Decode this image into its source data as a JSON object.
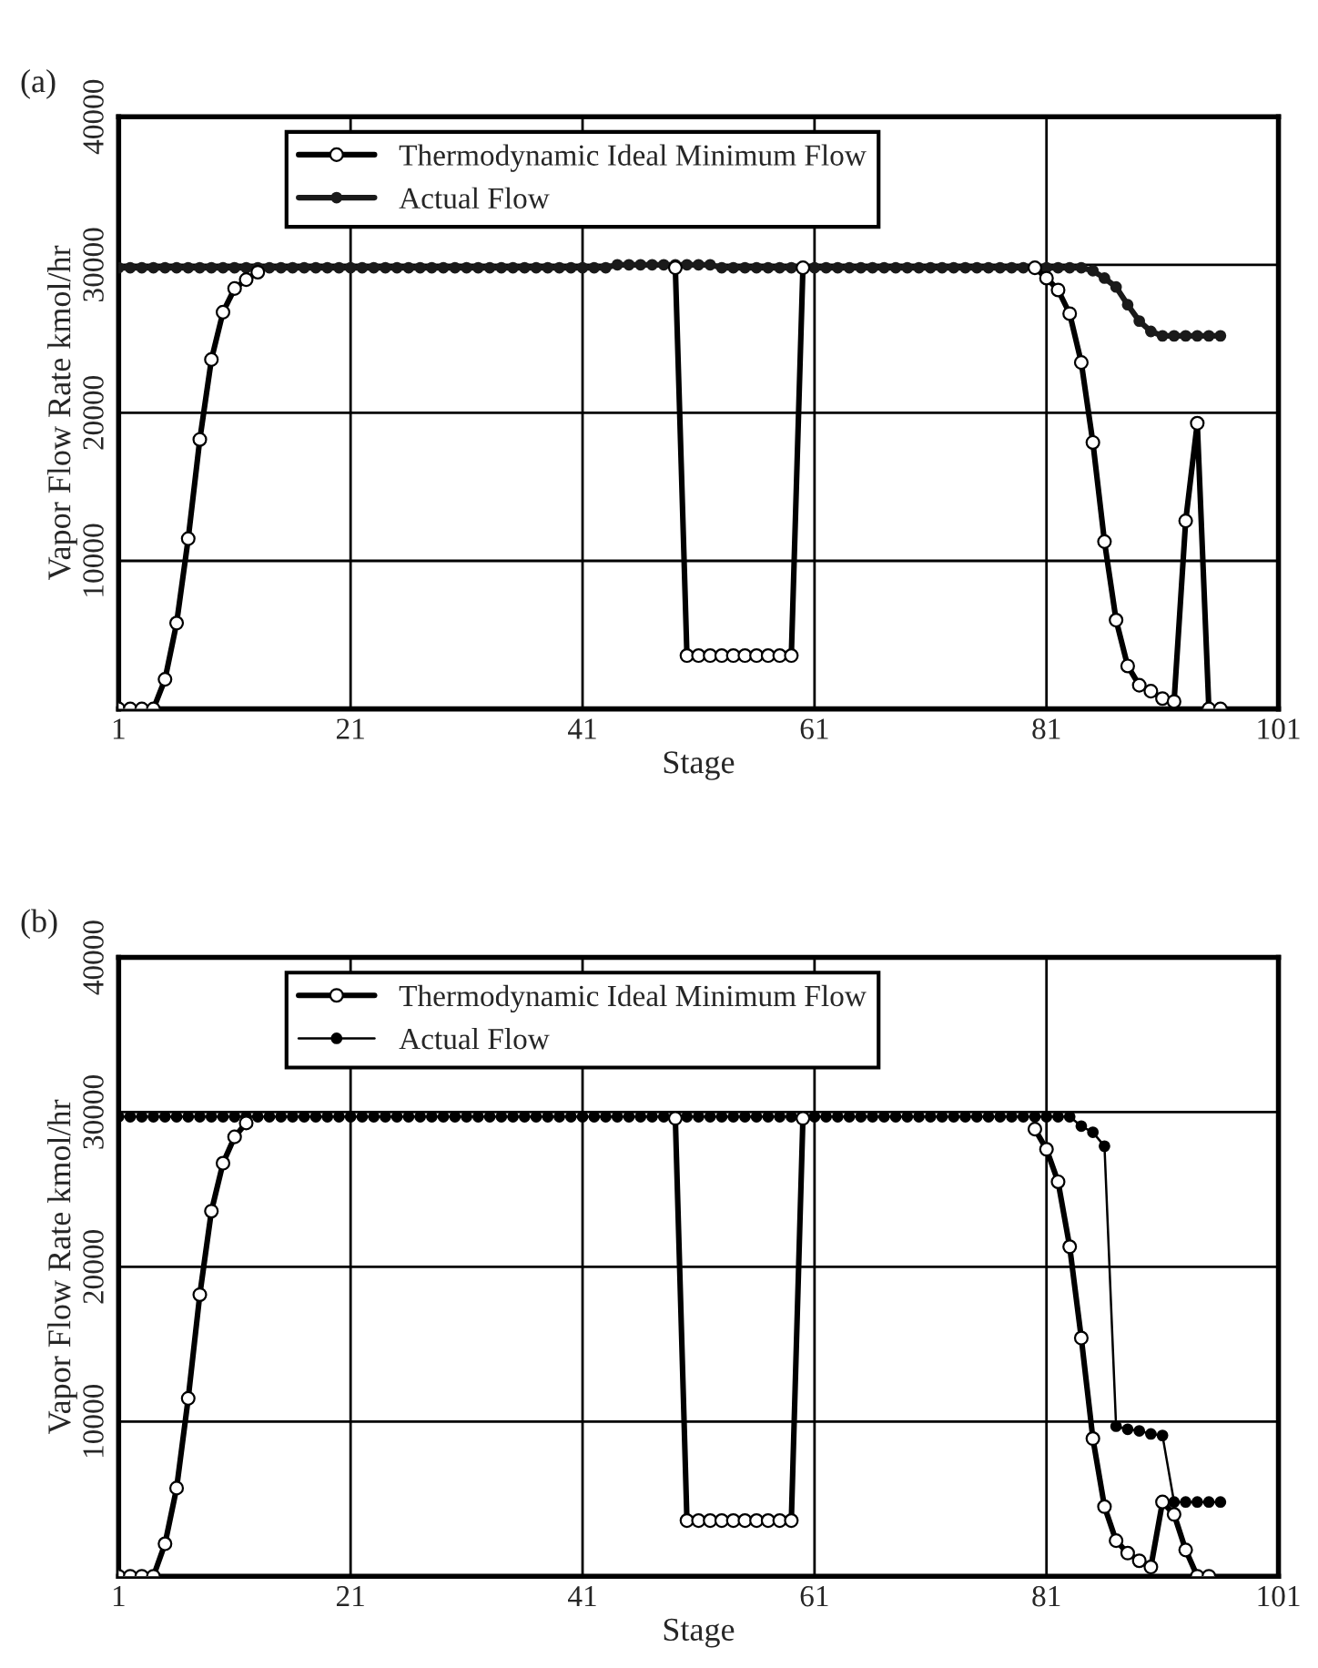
{
  "chart_data": [
    {
      "type": "line",
      "annotations": [
        "(a)"
      ],
      "xlabel": "Stage",
      "ylabel": "Vapor Flow Rate kmol/hr",
      "x": [
        1,
        2,
        3,
        4,
        5,
        6,
        7,
        8,
        9,
        10,
        11,
        12,
        13,
        14,
        15,
        16,
        17,
        18,
        19,
        20,
        21,
        22,
        23,
        24,
        25,
        26,
        27,
        28,
        29,
        30,
        31,
        32,
        33,
        34,
        35,
        36,
        37,
        38,
        39,
        40,
        41,
        42,
        43,
        44,
        45,
        46,
        47,
        48,
        49,
        50,
        51,
        52,
        53,
        54,
        55,
        56,
        57,
        58,
        59,
        60,
        61,
        62,
        63,
        64,
        65,
        66,
        67,
        68,
        69,
        70,
        71,
        72,
        73,
        74,
        75,
        76,
        77,
        78,
        79,
        80,
        81,
        82,
        83,
        84,
        85,
        86,
        87,
        88,
        89,
        90,
        91,
        92,
        93,
        94,
        95,
        96
      ],
      "series": [
        {
          "name": "Thermodynamic Ideal Minimum Flow",
          "color": "#000000",
          "marker": "circle",
          "values": [
            0,
            0,
            0,
            0,
            2000,
            5800,
            11500,
            18200,
            23600,
            26800,
            28400,
            29000,
            29500,
            null,
            null,
            null,
            null,
            null,
            null,
            null,
            null,
            null,
            null,
            null,
            null,
            null,
            null,
            null,
            null,
            null,
            null,
            null,
            null,
            null,
            null,
            null,
            null,
            null,
            null,
            null,
            null,
            null,
            null,
            null,
            null,
            null,
            null,
            null,
            29800,
            3600,
            3600,
            3600,
            3600,
            3600,
            3600,
            3600,
            3600,
            3600,
            3600,
            29800,
            null,
            null,
            null,
            null,
            null,
            null,
            null,
            null,
            null,
            null,
            null,
            null,
            null,
            null,
            null,
            null,
            null,
            null,
            null,
            29800,
            29100,
            28300,
            26700,
            23400,
            18000,
            11300,
            6000,
            2900,
            1600,
            1200,
            700,
            500,
            12700,
            19300,
            0,
            0
          ]
        },
        {
          "name": "Actual Flow",
          "color": "#1a1a1a",
          "marker": "circle",
          "values": [
            29800,
            29800,
            29800,
            29800,
            29800,
            29800,
            29800,
            29800,
            29800,
            29800,
            29800,
            29800,
            29800,
            29800,
            29800,
            29800,
            29800,
            29800,
            29800,
            29800,
            29800,
            29800,
            29800,
            29800,
            29800,
            29800,
            29800,
            29800,
            29800,
            29800,
            29800,
            29800,
            29800,
            29800,
            29800,
            29800,
            29800,
            29800,
            29800,
            29800,
            29800,
            29800,
            29800,
            30000,
            30000,
            30000,
            30000,
            30000,
            30000,
            30000,
            30000,
            30000,
            29800,
            29800,
            29800,
            29800,
            29800,
            29800,
            29800,
            29800,
            29800,
            29800,
            29800,
            29800,
            29800,
            29800,
            29800,
            29800,
            29800,
            29800,
            29800,
            29800,
            29800,
            29800,
            29800,
            29800,
            29800,
            29800,
            29800,
            29800,
            29800,
            29800,
            29800,
            29800,
            29600,
            29100,
            28500,
            27300,
            26200,
            25500,
            25200,
            25200,
            25200,
            25200,
            25200,
            25200
          ]
        }
      ],
      "xlim": [
        1,
        101
      ],
      "xticks": [
        1,
        21,
        41,
        61,
        81,
        101
      ],
      "ylim": [
        0,
        40000
      ],
      "yticks": [
        {
          "value": 0,
          "label": null
        },
        10000,
        20000,
        30000,
        40000
      ],
      "grid": true,
      "legend": "top"
    },
    {
      "type": "line",
      "annotations": [
        "(b)"
      ],
      "xlabel": "Stage",
      "ylabel": "Vapor Flow Rate kmol/hr",
      "x": [
        1,
        2,
        3,
        4,
        5,
        6,
        7,
        8,
        9,
        10,
        11,
        12,
        13,
        14,
        15,
        16,
        17,
        18,
        19,
        20,
        21,
        22,
        23,
        24,
        25,
        26,
        27,
        28,
        29,
        30,
        31,
        32,
        33,
        34,
        35,
        36,
        37,
        38,
        39,
        40,
        41,
        42,
        43,
        44,
        45,
        46,
        47,
        48,
        49,
        50,
        51,
        52,
        53,
        54,
        55,
        56,
        57,
        58,
        59,
        60,
        61,
        62,
        63,
        64,
        65,
        66,
        67,
        68,
        69,
        70,
        71,
        72,
        73,
        74,
        75,
        76,
        77,
        78,
        79,
        80,
        81,
        82,
        83,
        84,
        85,
        86,
        87,
        88,
        89,
        90,
        91,
        92,
        93,
        94,
        95,
        96
      ],
      "series": [
        {
          "name": "Thermodynamic Ideal Minimum Flow",
          "color": "#000000",
          "marker": "circle",
          "values": [
            0,
            0,
            0,
            0,
            2100,
            5700,
            11500,
            18200,
            23600,
            26700,
            28400,
            29300,
            null,
            null,
            null,
            null,
            null,
            null,
            null,
            null,
            null,
            null,
            null,
            null,
            null,
            null,
            null,
            null,
            null,
            null,
            null,
            null,
            null,
            null,
            null,
            null,
            null,
            null,
            null,
            null,
            null,
            null,
            null,
            null,
            null,
            null,
            null,
            null,
            29600,
            3600,
            3600,
            3600,
            3600,
            3600,
            3600,
            3600,
            3600,
            3600,
            3600,
            29600,
            null,
            null,
            null,
            null,
            null,
            null,
            null,
            null,
            null,
            null,
            null,
            null,
            null,
            null,
            null,
            null,
            null,
            null,
            null,
            28900,
            27600,
            25500,
            21300,
            15400,
            8900,
            4500,
            2300,
            1500,
            1000,
            600,
            4800,
            4000,
            1700,
            0,
            0,
            null
          ]
        },
        {
          "name": "Actual Flow",
          "color": "#000000",
          "marker": "circle",
          "values": [
            29700,
            29700,
            29700,
            29700,
            29700,
            29700,
            29700,
            29700,
            29700,
            29700,
            29700,
            29700,
            29700,
            29700,
            29700,
            29700,
            29700,
            29700,
            29700,
            29700,
            29700,
            29700,
            29700,
            29700,
            29700,
            29700,
            29700,
            29700,
            29700,
            29700,
            29700,
            29700,
            29700,
            29700,
            29700,
            29700,
            29700,
            29700,
            29700,
            29700,
            29700,
            29700,
            29700,
            29700,
            29700,
            29700,
            29700,
            29700,
            29700,
            29700,
            29700,
            29700,
            29700,
            29700,
            29700,
            29700,
            29700,
            29700,
            29700,
            29700,
            29700,
            29700,
            29700,
            29700,
            29700,
            29700,
            29700,
            29700,
            29700,
            29700,
            29700,
            29700,
            29700,
            29700,
            29700,
            29700,
            29700,
            29700,
            29700,
            29700,
            29700,
            29700,
            29700,
            29100,
            28700,
            27800,
            9700,
            9500,
            9400,
            9200,
            9100,
            4800,
            4800,
            4800,
            4800,
            4800
          ]
        }
      ],
      "xlim": [
        1,
        101
      ],
      "xticks": [
        1,
        21,
        41,
        61,
        81,
        101
      ],
      "ylim": [
        0,
        40000
      ],
      "yticks": [
        {
          "value": 0,
          "label": null
        },
        10000,
        20000,
        30000,
        40000
      ],
      "grid": true,
      "legend": "top"
    }
  ]
}
